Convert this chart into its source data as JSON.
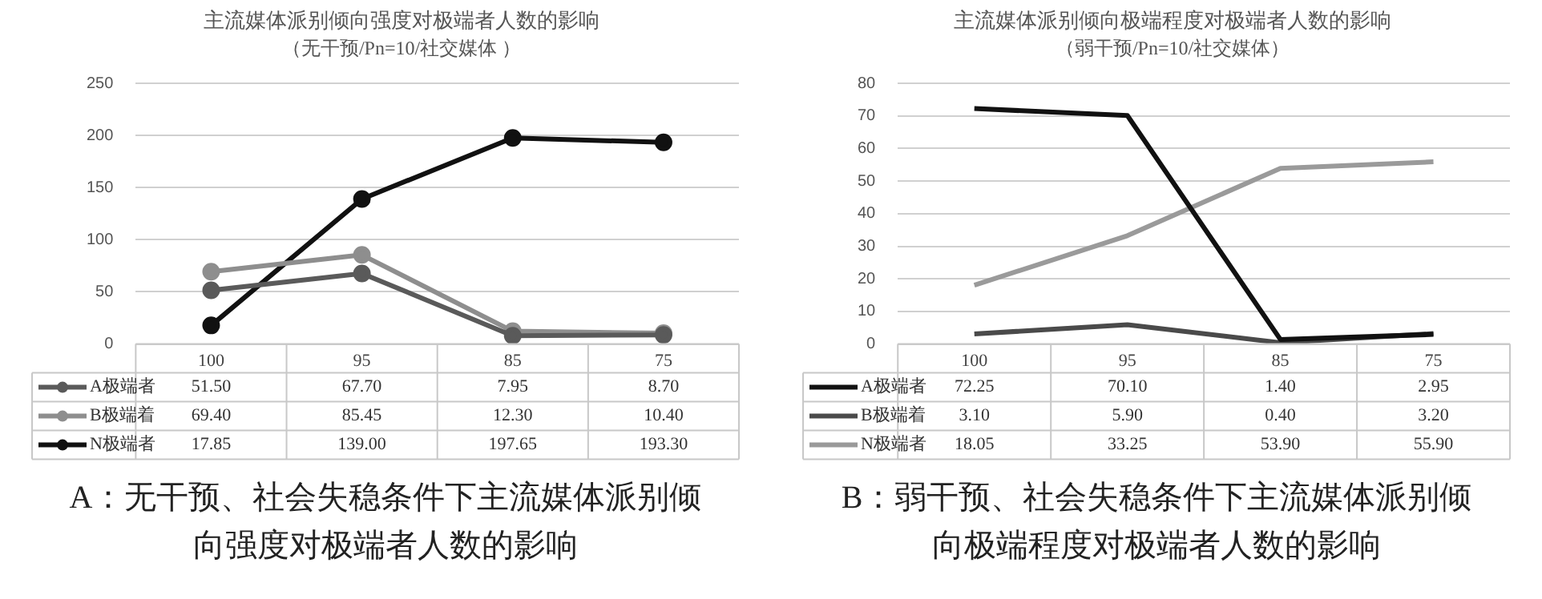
{
  "chart_data": [
    {
      "type": "line",
      "title": "主流媒体派别倾向强度对极端者人数的影响",
      "subtitle": "（无干预/Pn=10/社交媒体 ）",
      "categories": [
        "100",
        "95",
        "85",
        "75"
      ],
      "ylim": [
        0,
        250
      ],
      "yticks": [
        0,
        50,
        100,
        150,
        200,
        250
      ],
      "grid": "y",
      "legend": "bottom",
      "marker": "circle",
      "annotations": [
        "A：无干预、社会失稳条件下主流媒体派别倾向强度对极端者人数的影响"
      ],
      "series": [
        {
          "name": "A极端者",
          "color": "#5a5a5a",
          "values": [
            51.5,
            67.7,
            7.95,
            8.7
          ],
          "value_labels": [
            "51.50",
            "67.70",
            "7.95",
            "8.70"
          ]
        },
        {
          "name": "B极端着",
          "color": "#8e8e8e",
          "values": [
            69.4,
            85.45,
            12.3,
            10.4
          ],
          "value_labels": [
            "69.40",
            "85.45",
            "12.30",
            "10.40"
          ]
        },
        {
          "name": "N极端者",
          "color": "#111111",
          "values": [
            17.85,
            139,
            197.65,
            193.3
          ],
          "value_labels": [
            "17.85",
            "139.00",
            "197.65",
            "193.30"
          ]
        }
      ]
    },
    {
      "type": "line",
      "title": "主流媒体派别倾向极端程度对极端者人数的影响",
      "subtitle": "（弱干预/Pn=10/社交媒体）",
      "categories": [
        "100",
        "95",
        "85",
        "75"
      ],
      "ylim": [
        0,
        80
      ],
      "yticks": [
        0,
        10,
        20,
        30,
        40,
        50,
        60,
        70,
        80
      ],
      "grid": "y",
      "legend": "bottom",
      "marker": "none",
      "annotations": [
        "B：弱干预、社会失稳条件下主流媒体派别倾向极端程度对极端者人数的影响"
      ],
      "series": [
        {
          "name": "A极端者",
          "color": "#111111",
          "values": [
            72.25,
            70.1,
            1.4,
            2.95
          ],
          "value_labels": [
            "72.25",
            "70.10",
            "1.40",
            "2.95"
          ]
        },
        {
          "name": "B极端着",
          "color": "#4a4a4a",
          "values": [
            3.1,
            5.9,
            0.4,
            3.2
          ],
          "value_labels": [
            "3.10",
            "5.90",
            "0.40",
            "3.20"
          ]
        },
        {
          "name": "N极端者",
          "color": "#9a9a9a",
          "values": [
            18.05,
            33.25,
            53.9,
            55.9
          ],
          "value_labels": [
            "18.05",
            "33.25",
            "53.90",
            "55.90"
          ]
        }
      ]
    }
  ]
}
